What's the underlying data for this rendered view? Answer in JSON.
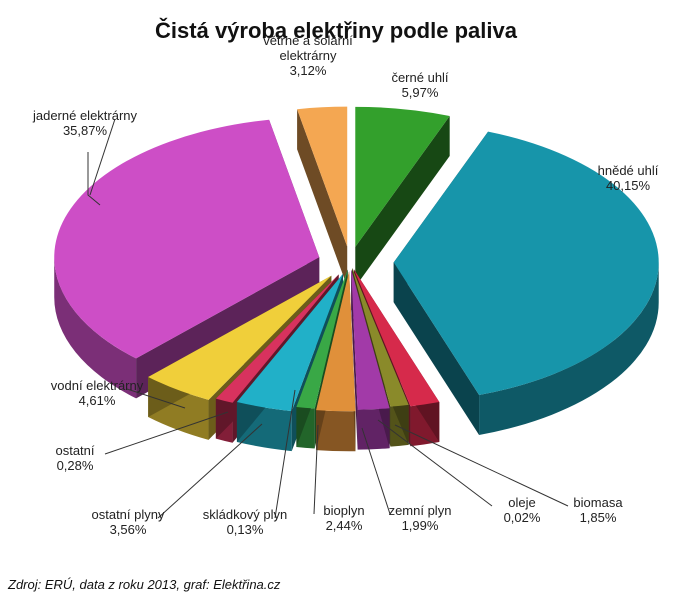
{
  "chart_data": {
    "type": "pie",
    "title": "Čistá výroba elektřiny podle paliva",
    "value_format": "percent",
    "slices": [
      {
        "name": "černé uhlí",
        "value": 5.97,
        "value_label": "5,97%",
        "color": "#33a02c"
      },
      {
        "name": "hnědé uhlí",
        "value": 40.15,
        "value_label": "40,15%",
        "color": "#1795aa"
      },
      {
        "name": "biomasa",
        "value": 1.85,
        "value_label": "1,85%",
        "color": "#d62a4b"
      },
      {
        "name": "oleje",
        "value": 0.02,
        "value_label": "0,02%",
        "color": "#8a8a2a"
      },
      {
        "name": "zemní plyn",
        "value": 1.99,
        "value_label": "1,99%",
        "color": "#a23aa8"
      },
      {
        "name": "bioplyn",
        "value": 2.44,
        "value_label": "2,44%",
        "color": "#e0903a"
      },
      {
        "name": "skládkový plyn",
        "value": 0.13,
        "value_label": "0,13%",
        "color": "#39a846"
      },
      {
        "name": "ostatní plyny",
        "value": 3.56,
        "value_label": "3,56%",
        "color": "#21b0c8"
      },
      {
        "name": "ostatní",
        "value": 0.28,
        "value_label": "0,28%",
        "color": "#d8325e"
      },
      {
        "name": "vodní elektrárny",
        "value": 4.61,
        "value_label": "4,61%",
        "color": "#f0cf3a"
      },
      {
        "name": "jaderné elektrárny",
        "value": 35.87,
        "value_label": "35,87%",
        "color": "#cd4ec6"
      },
      {
        "name": "větrné a solární elektrárny",
        "value": 3.12,
        "value_label": "3,12%",
        "color": "#f4a752"
      }
    ]
  },
  "source_text": "Zdroj: ERÚ, data z roku 2013, graf: Elektřina.cz"
}
